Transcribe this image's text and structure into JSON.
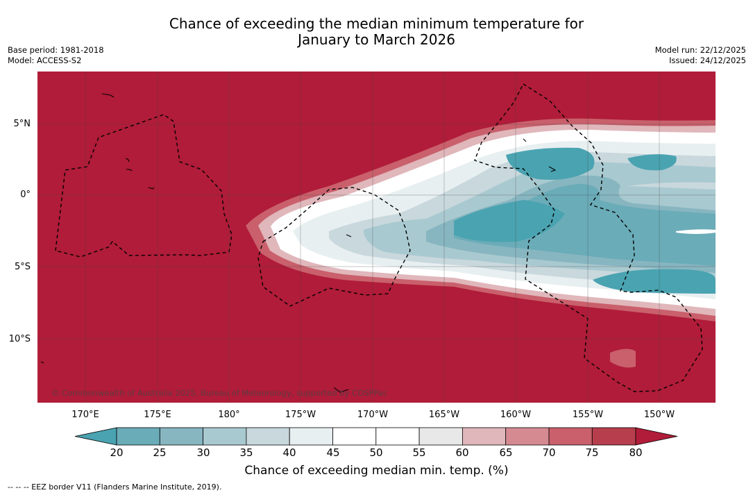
{
  "title": {
    "line1": "Chance of exceeding the median minimum temperature for",
    "line2": "January to March 2026"
  },
  "meta": {
    "base_period": "Base period: 1981-2018",
    "model": "Model: ACCESS-S2",
    "model_run": "Model run: 22/12/2025",
    "issued": "Issued: 24/12/2025"
  },
  "map": {
    "lat_labels": [
      "5°N",
      "0°",
      "5°S",
      "10°S"
    ],
    "lon_labels": [
      "170°E",
      "175°E",
      "180°",
      "175°W",
      "170°W",
      "165°W",
      "160°W",
      "155°W",
      "150°W"
    ],
    "copyright": "© Commonwealth of Australia 2025, Bureau of Meteorology, supported by COSPPac"
  },
  "colorbar": {
    "ticks": [
      "20",
      "25",
      "30",
      "35",
      "40",
      "45",
      "50",
      "55",
      "60",
      "65",
      "70",
      "75",
      "80"
    ],
    "colors": [
      "#4aa3b1",
      "#6aacb8",
      "#87b6c0",
      "#a9c9d0",
      "#c8d8dd",
      "#e8eff1",
      "#ffffff",
      "#ffffff",
      "#e8e8e8",
      "#e0b7bb",
      "#d58a92",
      "#c9606c",
      "#b73e4c",
      "#b01c39"
    ],
    "label": "Chance of exceeding median min. temp. (%)"
  },
  "legend": {
    "eez": "--  --  -- EEZ border V11 (Flanders Marine Institute, 2019)."
  }
}
